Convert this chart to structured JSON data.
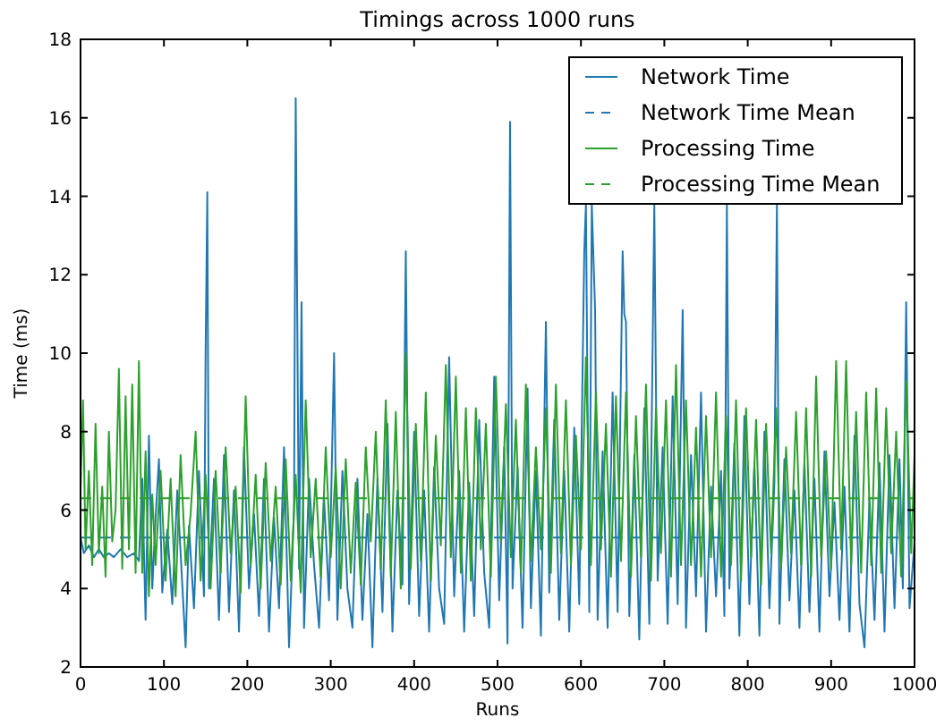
{
  "chart_data": {
    "type": "line",
    "title": "Timings across 1000 runs",
    "xlabel": "Runs",
    "ylabel": "Time (ms)",
    "xlim": [
      0,
      1000
    ],
    "ylim": [
      2,
      18
    ],
    "xticks": [
      0,
      100,
      200,
      300,
      400,
      500,
      600,
      700,
      800,
      900,
      1000
    ],
    "yticks": [
      2,
      4,
      6,
      8,
      10,
      12,
      14,
      16,
      18
    ],
    "legend": "top right",
    "grid": false,
    "marker": "none",
    "series": [
      {
        "name": "Network Time",
        "color": "#1f77b4",
        "line_style": "solid",
        "x": [
          0,
          4,
          10,
          16,
          22,
          28,
          34,
          40,
          48,
          56,
          64,
          70,
          74,
          78,
          82,
          86,
          90,
          94,
          98,
          104,
          110,
          116,
          122,
          126,
          130,
          136,
          142,
          148,
          150,
          152,
          154,
          160,
          166,
          172,
          178,
          184,
          190,
          196,
          202,
          208,
          214,
          220,
          226,
          232,
          238,
          244,
          250,
          256,
          258,
          262,
          265,
          268,
          274,
          280,
          286,
          292,
          298,
          304,
          308,
          314,
          320,
          326,
          332,
          338,
          344,
          350,
          356,
          362,
          368,
          374,
          380,
          386,
          390,
          394,
          400,
          406,
          412,
          418,
          424,
          430,
          436,
          442,
          448,
          454,
          460,
          466,
          472,
          478,
          484,
          490,
          496,
          502,
          508,
          512,
          515,
          518,
          524,
          530,
          536,
          540,
          546,
          552,
          558,
          562,
          568,
          574,
          580,
          586,
          592,
          598,
          604,
          606,
          610,
          613,
          617,
          620,
          626,
          632,
          638,
          644,
          650,
          652,
          654,
          658,
          664,
          670,
          676,
          682,
          688,
          692,
          698,
          704,
          710,
          716,
          722,
          726,
          732,
          738,
          744,
          750,
          756,
          762,
          768,
          772,
          775,
          778,
          784,
          790,
          796,
          802,
          808,
          814,
          820,
          826,
          832,
          835,
          838,
          844,
          850,
          856,
          862,
          868,
          874,
          880,
          886,
          892,
          898,
          904,
          910,
          916,
          922,
          928,
          934,
          940,
          946,
          952,
          958,
          964,
          970,
          976,
          982,
          986,
          990,
          994,
          1000
        ],
        "values": [
          5.3,
          4.9,
          5.1,
          4.8,
          5.0,
          4.8,
          4.9,
          4.8,
          5.0,
          4.8,
          4.9,
          4.7,
          6.8,
          3.2,
          7.9,
          4.0,
          5.8,
          7.3,
          3.9,
          5.5,
          3.6,
          6.5,
          4.1,
          2.5,
          5.6,
          3.5,
          7.0,
          3.8,
          10.1,
          14.1,
          4.0,
          6.8,
          3.2,
          7.4,
          3.4,
          6.5,
          2.9,
          7.6,
          4.0,
          5.9,
          3.3,
          6.8,
          2.9,
          5.8,
          3.5,
          7.6,
          2.5,
          6.0,
          16.5,
          4.5,
          11.3,
          3.0,
          6.8,
          4.6,
          3.0,
          6.3,
          3.7,
          10.0,
          3.2,
          7.0,
          4.0,
          3.0,
          6.8,
          3.2,
          5.9,
          2.5,
          6.8,
          3.4,
          8.2,
          2.9,
          6.5,
          4.1,
          12.6,
          3.6,
          8.0,
          3.3,
          6.5,
          2.9,
          7.1,
          4.0,
          3.1,
          9.9,
          3.8,
          7.0,
          2.9,
          6.7,
          3.3,
          8.3,
          4.4,
          3.0,
          9.4,
          3.7,
          7.6,
          2.6,
          15.9,
          4.0,
          7.1,
          3.0,
          9.1,
          3.5,
          7.0,
          2.8,
          10.8,
          3.9,
          8.3,
          3.2,
          7.0,
          2.9,
          8.1,
          3.6,
          12.6,
          13.8,
          3.4,
          13.8,
          11.1,
          3.2,
          7.5,
          3.0,
          9.0,
          3.4,
          12.6,
          11.0,
          10.8,
          3.3,
          7.4,
          2.7,
          8.6,
          3.1,
          13.8,
          4.2,
          7.6,
          3.1,
          8.9,
          3.6,
          11.1,
          3.0,
          7.4,
          3.8,
          9.0,
          2.9,
          6.6,
          3.8,
          7.0,
          3.3,
          13.8,
          4.0,
          7.7,
          2.8,
          8.4,
          3.6,
          7.2,
          2.8,
          8.0,
          3.5,
          6.7,
          13.8,
          3.1,
          7.3,
          3.7,
          6.5,
          3.0,
          7.2,
          3.4,
          6.8,
          2.9,
          7.5,
          3.8,
          6.2,
          3.2,
          6.6,
          2.9,
          7.9,
          3.6,
          2.5,
          6.3,
          3.2,
          7.2,
          2.9,
          7.4,
          3.5,
          7.3,
          4.0,
          11.3,
          3.5,
          5.2
        ]
      },
      {
        "name": "Network Time Mean",
        "color": "#1f77b4",
        "line_style": "dashed",
        "x": [
          0,
          1000
        ],
        "values": [
          5.3,
          5.3
        ]
      },
      {
        "name": "Processing Time",
        "color": "#2ca02c",
        "line_style": "solid",
        "x": [
          0,
          3,
          6,
          10,
          14,
          18,
          22,
          26,
          30,
          34,
          38,
          42,
          46,
          50,
          54,
          58,
          62,
          66,
          70,
          74,
          78,
          82,
          86,
          90,
          96,
          102,
          108,
          114,
          120,
          126,
          132,
          138,
          144,
          150,
          156,
          162,
          168,
          174,
          180,
          186,
          192,
          198,
          204,
          210,
          216,
          222,
          228,
          234,
          240,
          246,
          252,
          258,
          264,
          270,
          276,
          282,
          288,
          294,
          300,
          306,
          312,
          318,
          324,
          330,
          336,
          342,
          348,
          354,
          360,
          366,
          372,
          378,
          384,
          390,
          396,
          402,
          408,
          414,
          420,
          426,
          432,
          438,
          444,
          450,
          456,
          462,
          468,
          474,
          480,
          486,
          492,
          498,
          504,
          510,
          516,
          522,
          528,
          534,
          540,
          546,
          552,
          558,
          564,
          570,
          576,
          582,
          588,
          594,
          600,
          606,
          612,
          618,
          624,
          630,
          636,
          642,
          648,
          654,
          660,
          666,
          672,
          678,
          684,
          690,
          696,
          702,
          708,
          714,
          720,
          726,
          732,
          738,
          744,
          750,
          756,
          762,
          768,
          774,
          780,
          786,
          792,
          798,
          804,
          810,
          816,
          822,
          828,
          834,
          840,
          846,
          852,
          858,
          864,
          870,
          876,
          882,
          888,
          894,
          900,
          906,
          912,
          918,
          924,
          930,
          936,
          942,
          948,
          954,
          960,
          966,
          972,
          978,
          984,
          990,
          996,
          1000
        ],
        "values": [
          6.5,
          8.8,
          5.0,
          7.0,
          4.6,
          8.2,
          4.9,
          6.6,
          4.3,
          8.0,
          5.2,
          6.0,
          9.6,
          4.5,
          8.9,
          5.0,
          9.2,
          4.4,
          9.8,
          4.4,
          7.5,
          3.8,
          6.4,
          4.6,
          7.0,
          4.2,
          6.8,
          3.8,
          7.4,
          4.6,
          5.9,
          8.0,
          4.2,
          6.9,
          4.0,
          7.0,
          4.4,
          7.6,
          4.9,
          6.6,
          3.9,
          8.9,
          4.6,
          6.9,
          4.0,
          7.2,
          4.7,
          6.6,
          4.1,
          7.3,
          4.2,
          6.9,
          3.9,
          8.8,
          4.8,
          6.8,
          4.3,
          7.6,
          4.8,
          7.1,
          4.0,
          7.3,
          4.4,
          6.7,
          4.1,
          7.6,
          5.2,
          8.0,
          4.5,
          8.8,
          4.3,
          8.5,
          4.0,
          10.0,
          4.5,
          8.2,
          4.7,
          9.0,
          4.2,
          7.9,
          5.1,
          9.7,
          4.8,
          9.4,
          4.4,
          8.6,
          4.2,
          8.6,
          5.0,
          8.2,
          4.3,
          9.4,
          5.2,
          8.7,
          4.8,
          8.3,
          4.4,
          9.2,
          4.7,
          7.6,
          5.0,
          8.6,
          4.4,
          9.2,
          4.9,
          8.8,
          4.6,
          7.9,
          5.0,
          9.9,
          4.6,
          9.0,
          5.0,
          8.2,
          4.3,
          8.9,
          4.7,
          9.0,
          4.3,
          8.4,
          4.8,
          9.2,
          4.2,
          8.6,
          4.9,
          8.8,
          4.3,
          9.7,
          4.6,
          8.8,
          4.6,
          8.1,
          4.3,
          8.4,
          4.8,
          9.0,
          4.3,
          8.4,
          4.6,
          8.8,
          4.2,
          8.6,
          4.8,
          8.3,
          4.1,
          8.2,
          4.9,
          8.6,
          4.5,
          7.6,
          4.9,
          8.5,
          4.6,
          8.6,
          4.3,
          9.4,
          4.8,
          7.5,
          4.5,
          9.8,
          5.0,
          9.8,
          4.6,
          8.5,
          4.4,
          9.0,
          4.6,
          9.1,
          4.4,
          8.6,
          4.9,
          8.0,
          4.3,
          9.3,
          4.9,
          7.4
        ]
      },
      {
        "name": "Processing Time Mean",
        "color": "#2ca02c",
        "line_style": "dashed",
        "x": [
          0,
          1000
        ],
        "values": [
          6.3,
          6.3
        ]
      }
    ]
  }
}
